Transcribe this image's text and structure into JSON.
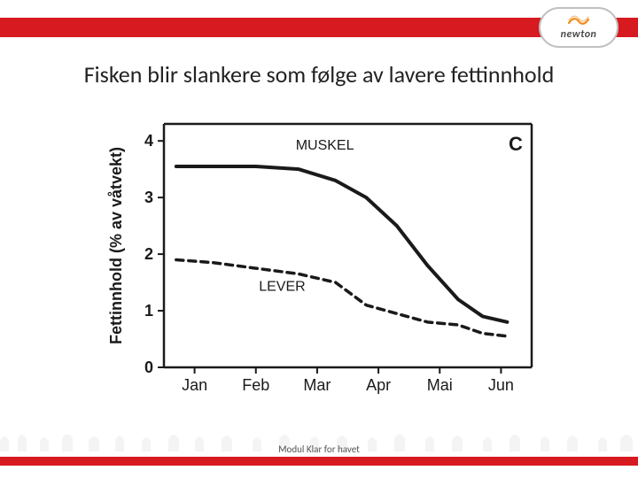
{
  "brand": {
    "name": "newton"
  },
  "title": "Fisken blir slankere som følge av lavere fettinnhold",
  "footer": "Modul Klar for havet",
  "chart": {
    "type": "line",
    "panel_label": "C",
    "panel_label_fontsize": 22,
    "panel_label_fontweight": "bold",
    "ylabel": "Fettinnhold (% av våtvekt)",
    "ylabel_fontsize": 18,
    "xlim": [
      0,
      6
    ],
    "ylim": [
      0,
      4.3
    ],
    "xticks": [
      0.5,
      1.5,
      2.5,
      3.5,
      4.5,
      5.5
    ],
    "xtick_labels": [
      "Jan",
      "Feb",
      "Mar",
      "Apr",
      "Mai",
      "Jun"
    ],
    "ytick_values": [
      0,
      1,
      2,
      3,
      4
    ],
    "tick_fontsize": 18,
    "axis_color": "#1a1a1a",
    "axis_width": 2.5,
    "background_color": "#ffffff",
    "series": {
      "muskel": {
        "label": "MUSKEL",
        "label_x": 2.15,
        "label_y": 3.85,
        "color": "#1a1a1a",
        "line_width": 4,
        "dash": "none",
        "x": [
          0.2,
          0.8,
          1.5,
          2.2,
          2.8,
          3.3,
          3.8,
          4.3,
          4.8,
          5.2,
          5.6
        ],
        "y": [
          3.55,
          3.55,
          3.55,
          3.5,
          3.3,
          3.0,
          2.5,
          1.8,
          1.2,
          0.9,
          0.8
        ]
      },
      "lever": {
        "label": "LEVER",
        "label_x": 1.55,
        "label_y": 1.35,
        "color": "#1a1a1a",
        "line_width": 3.5,
        "dash": "8,6",
        "x": [
          0.2,
          0.8,
          1.5,
          2.2,
          2.8,
          3.3,
          3.8,
          4.3,
          4.8,
          5.2,
          5.6
        ],
        "y": [
          1.9,
          1.85,
          1.75,
          1.65,
          1.5,
          1.1,
          0.95,
          0.8,
          0.75,
          0.6,
          0.55
        ]
      }
    }
  },
  "colors": {
    "brand_red": "#d71920",
    "logo_orange": "#f08a1d",
    "text_dark": "#222222"
  }
}
